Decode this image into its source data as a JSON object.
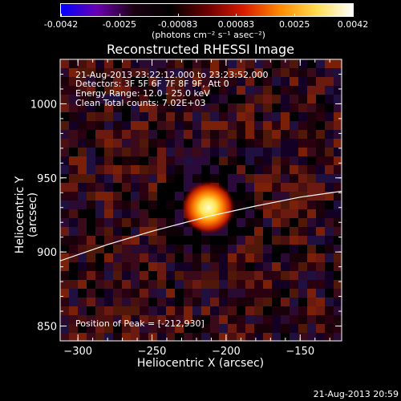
{
  "colorbar": {
    "ticks": [
      "-0.0042",
      "-0.0025",
      "-0.00083",
      "0.00083",
      "0.0025",
      "0.0042"
    ],
    "units": "(photons cm⁻² s⁻¹ asec⁻²)",
    "colors": [
      "#0000ff",
      "#6a00b0",
      "#1a0010",
      "#000000",
      "#6a0000",
      "#d81a00",
      "#ff8a00",
      "#ffdc50",
      "#ffffff"
    ]
  },
  "chart_data": {
    "type": "heatmap",
    "title": "Reconstructed RHESSI Image",
    "xlabel": "Heliocentric X (arcsec)",
    "ylabel": "Heliocentric Y (arcsec)",
    "xlim": [
      -312,
      -122
    ],
    "ylim": [
      840,
      1030
    ],
    "xticks": [
      -300,
      -250,
      -200,
      -150
    ],
    "yticks": [
      850,
      900,
      950,
      1000
    ],
    "peak": {
      "x": -212,
      "y": 930
    },
    "limb_curve": [
      {
        "x": -312,
        "y": 894
      },
      {
        "x": -280,
        "y": 905
      },
      {
        "x": -250,
        "y": 914
      },
      {
        "x": -212,
        "y": 924
      },
      {
        "x": -180,
        "y": 931
      },
      {
        "x": -150,
        "y": 937
      },
      {
        "x": -122,
        "y": 941
      }
    ],
    "info_lines": [
      "21-Aug-2013 23:22:12.000 to 23:23:52.000",
      "Detectors: 3F 5F 6F 7F 8F 9F, Att 0",
      "Energy Range: 12.0 - 25.0 keV",
      "Clean     Total counts: 7.02E+03"
    ],
    "peak_label": "Position of Peak = [-212,930]"
  },
  "footer": {
    "date": "21-Aug-2013 20:59"
  }
}
